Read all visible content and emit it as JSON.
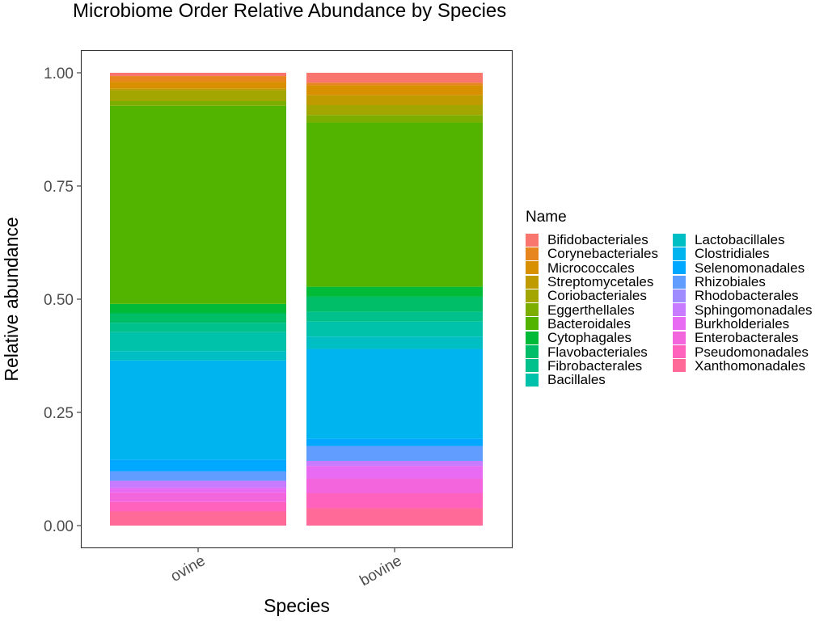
{
  "chart_data": {
    "type": "bar",
    "stacked": true,
    "normalized": true,
    "title": "Microbiome Order Relative Abundance by Species",
    "xlabel": "Species",
    "ylabel": "Relative abundance",
    "ylim": [
      0,
      1
    ],
    "yticks": [
      "0.00",
      "0.25",
      "0.50",
      "0.75",
      "1.00"
    ],
    "grid": false,
    "legend_title": "Name",
    "legend_position": "right",
    "categories": [
      "ovine",
      "bovine"
    ],
    "series": [
      {
        "name": "Bifidobacteriales",
        "color": "#F8766D",
        "values": [
          0.007,
          0.02
        ]
      },
      {
        "name": "Corynebacteriales",
        "color": "#E7851E",
        "values": [
          0.012,
          0.005
        ]
      },
      {
        "name": "Micrococcales",
        "color": "#D89000",
        "values": [
          0.014,
          0.02
        ]
      },
      {
        "name": "Streptomycetales",
        "color": "#C09B00",
        "values": [
          0.004,
          0.02
        ]
      },
      {
        "name": "Coriobacteriales",
        "color": "#A3A500",
        "values": [
          0.023,
          0.02
        ]
      },
      {
        "name": "Eggerthellales",
        "color": "#7CAE00",
        "values": [
          0.01,
          0.015
        ]
      },
      {
        "name": "Bacteroidales",
        "color": "#53B400",
        "values": [
          0.42,
          0.33
        ]
      },
      {
        "name": "Cytophagales",
        "color": "#00BA38",
        "values": [
          0.02,
          0.02
        ]
      },
      {
        "name": "Flavobacteriales",
        "color": "#00BE67",
        "values": [
          0.02,
          0.03
        ]
      },
      {
        "name": "Fibrobacterales",
        "color": "#00C08B",
        "values": [
          0.02,
          0.02
        ]
      },
      {
        "name": "Bacillales",
        "color": "#00C1AA",
        "values": [
          0.04,
          0.03
        ]
      },
      {
        "name": "Lactobacillales",
        "color": "#00BFC4",
        "values": [
          0.02,
          0.025
        ]
      },
      {
        "name": "Clostridiales",
        "color": "#00B4EF",
        "values": [
          0.21,
          0.18
        ]
      },
      {
        "name": "Selenomonadales",
        "color": "#00A9FF",
        "values": [
          0.025,
          0.015
        ]
      },
      {
        "name": "Rhizobiales",
        "color": "#619CFF",
        "values": [
          0.02,
          0.03
        ]
      },
      {
        "name": "Rhodobacterales",
        "color": "#9F8CFF",
        "values": [
          0.0,
          0.0
        ]
      },
      {
        "name": "Sphingomonadales",
        "color": "#C77CFF",
        "values": [
          0.015,
          0.01
        ]
      },
      {
        "name": "Burkholderiales",
        "color": "#E76BF3",
        "values": [
          0.01,
          0.025
        ]
      },
      {
        "name": "Enterobacterales",
        "color": "#F265DC",
        "values": [
          0.02,
          0.03
        ]
      },
      {
        "name": "Pseudomonadales",
        "color": "#FF62BC",
        "values": [
          0.02,
          0.03
        ]
      },
      {
        "name": "Xanthomonadales",
        "color": "#FF6A98",
        "values": [
          0.03,
          0.035
        ]
      }
    ]
  }
}
